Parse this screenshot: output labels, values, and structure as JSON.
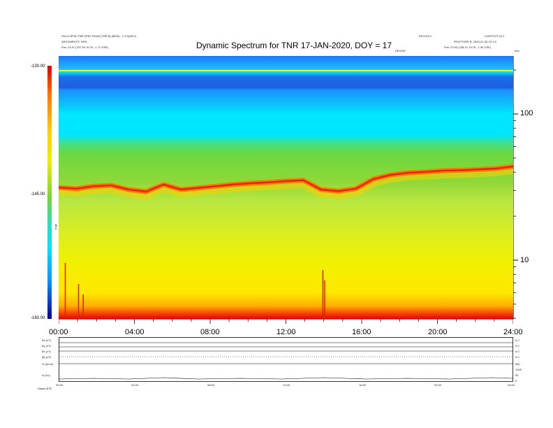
{
  "header": {
    "left_line1": "SOLO-RPW-TNR SPECTRUM (TNR B) (5694) - V 3.0(DEV)",
    "left_line2": "ARGUMENTS: 0000",
    "left_line3": "Pos:  23.97 (237.59, 5176, -1.71 GSE)",
    "center_title": "Dynamic Spectrum for TNR 17-JAN-2020, DOY = 17",
    "right_a1": "DEV/V3.0",
    "right_a2": "LD/RTOOT.v0.1",
    "right_b1": "ROLPTURE B: 2020-01-30 V2.0.0",
    "right_b2": "Pos:  23.93 (238.10, 5178, -1.49 GSE)",
    "right_sub": "DEV/DE"
  },
  "colorbar": {
    "top_label": "-130.00",
    "mid_label": "-145.00",
    "bottom_label": "-160.00",
    "unit_label": "TNR"
  },
  "right_axis": {
    "unit": "kHz",
    "tick_100": "100",
    "tick_10": "10"
  },
  "time_axis": {
    "ticks": [
      "00:00",
      "04:00",
      "08:00",
      "12:00",
      "16:00",
      "20:00",
      "24:00"
    ]
  },
  "small_axis": {
    "ticks": [
      "00:00",
      "04:00",
      "08:00",
      "12:00",
      "16:00",
      "20:00",
      "24:00"
    ]
  },
  "strip_panel": {
    "left_labels": [
      "Bz (nT)",
      "By (nT)",
      "Bx (nT)",
      "|B| (nT)",
      "Vr (km/s)",
      "N (/cc)"
    ],
    "right_labels": [
      "0.0",
      "0.0",
      "0.0",
      "0.0",
      "500",
      "1000",
      "50",
      "0"
    ],
    "footer": "Status  BTE"
  },
  "chart_data": {
    "type": "heatmap",
    "title": "Dynamic Spectrum for TNR 17-JAN-2020, DOY = 17",
    "xlabel": "",
    "ylabel": "",
    "x_range": [
      "00:00",
      "24:00"
    ],
    "x_ticks": [
      "00:00",
      "04:00",
      "08:00",
      "12:00",
      "16:00",
      "20:00",
      "24:00"
    ],
    "y_scale": "log",
    "y_ticks": [
      10,
      100
    ],
    "colorbar_range": [
      -160.0,
      -130.0
    ],
    "colorbar_ticks": [
      -130.0,
      -145.0,
      -160.0
    ],
    "colormap_colors": [
      "#e30000",
      "#ff7a00",
      "#ffd000",
      "#e8f000",
      "#7ad23a",
      "#20e0c8",
      "#00e0ff",
      "#009cff",
      "#1040d0",
      "#00008a"
    ],
    "band_colors": {
      "top": "#1a6ee8",
      "upper": "#00e6ff",
      "transition": "#7ad23a",
      "red_ridge": "#e02800",
      "middle": "#b8e640",
      "lower": "#f0f000",
      "bottom": "#e80000"
    },
    "ridge_level_trace": [
      0.75,
      0.72,
      0.78,
      0.8,
      0.7,
      0.65,
      0.82,
      0.7,
      0.74,
      0.78,
      0.82,
      0.85,
      0.87,
      0.9,
      0.92,
      0.7,
      0.66,
      0.72,
      0.95,
      1.05,
      1.1,
      1.12,
      1.15,
      1.16,
      1.18,
      1.2,
      1.25
    ],
    "legend": "none",
    "grid": false
  }
}
